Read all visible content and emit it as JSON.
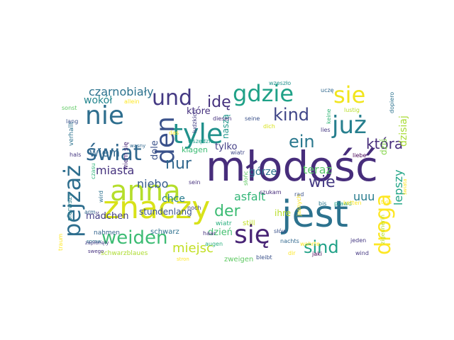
{
  "words": [
    {
      "text": "młodość",
      "color": "#472d7b"
    },
    {
      "text": "jest",
      "color": "#2c728e"
    },
    {
      "text": "znaczy",
      "color": "#d8e219"
    },
    {
      "text": "anna",
      "color": "#b5de2b"
    },
    {
      "text": "tyle",
      "color": "#21918c"
    },
    {
      "text": "gdzie",
      "color": "#1fa187"
    },
    {
      "text": "nie",
      "color": "#2e6e8e"
    },
    {
      "text": "już",
      "color": "#277f8e"
    },
    {
      "text": "się",
      "color": "#482475"
    },
    {
      "text": "den",
      "color": "#3b528b"
    },
    {
      "text": "świat",
      "color": "#31688e"
    },
    {
      "text": "sie",
      "color": "#f1e51d"
    },
    {
      "text": "und",
      "color": "#443983"
    },
    {
      "text": "pejzaż",
      "color": "#2e6e8e"
    },
    {
      "text": "weiden",
      "color": "#3dbc74"
    },
    {
      "text": "droga",
      "color": "#fde725"
    },
    {
      "text": "kind",
      "color": "#404688"
    },
    {
      "text": "ein",
      "color": "#2a788e"
    },
    {
      "text": "wie",
      "color": "#443983"
    },
    {
      "text": "sind",
      "color": "#1fa187"
    },
    {
      "text": "der",
      "color": "#3dbc74"
    },
    {
      "text": "nur",
      "color": "#31688e"
    },
    {
      "text": "idę",
      "color": "#46327e"
    },
    {
      "text": "która",
      "color": "#472d7b"
    },
    {
      "text": "czarnobiały",
      "color": "#2c728e"
    },
    {
      "text": "wiem",
      "color": "#31688e"
    },
    {
      "text": "teraz",
      "color": "#56c667"
    },
    {
      "text": "miejsc",
      "color": "#c2df23"
    },
    {
      "text": "miasta",
      "color": "#46337e"
    },
    {
      "text": "niebo",
      "color": "#365c8d"
    },
    {
      "text": "asfalt",
      "color": "#35b779"
    },
    {
      "text": "uuu",
      "color": "#287c8e"
    },
    {
      "text": "górze",
      "color": "#2c728e"
    },
    {
      "text": "chce",
      "color": "#287c8e"
    },
    {
      "text": "lepszy",
      "color": "#20a486"
    },
    {
      "text": "dziś",
      "color": "#85d54a"
    },
    {
      "text": "dzisiaj",
      "color": "#a8db34"
    },
    {
      "text": "stundenlang",
      "color": "#3b528b"
    },
    {
      "text": "mädchen",
      "color": "#433e85"
    },
    {
      "text": "tylko",
      "color": "#433e85"
    },
    {
      "text": "wokół",
      "color": "#24868e"
    },
    {
      "text": "które",
      "color": "#46317e"
    },
    {
      "text": "dole",
      "color": "#3b528b"
    },
    {
      "text": "naszą",
      "color": "#1f978b"
    },
    {
      "text": "ihre",
      "color": "#b8de29"
    },
    {
      "text": "dzień",
      "color": "#44bf70"
    },
    {
      "text": "klagen",
      "color": "#3dbc74"
    },
    {
      "text": "schwarz",
      "color": "#2d708e"
    },
    {
      "text": "wiatr",
      "color": "#2ab07f"
    },
    {
      "text": "still",
      "color": "#c0df25"
    },
    {
      "text": "zweigen",
      "color": "#5ec962"
    },
    {
      "text": "nahmen",
      "color": "#33638d"
    },
    {
      "text": "schwarzblaues",
      "color": "#addc30"
    },
    {
      "text": "hals",
      "color": "#453882"
    },
    {
      "text": "verhallt",
      "color": "#2c728e"
    },
    {
      "text": "pierwszy",
      "color": "#287d8e"
    },
    {
      "text": "traum",
      "color": "#fde725"
    },
    {
      "text": "arm",
      "color": "#33638d"
    },
    {
      "text": "lang",
      "color": "#3b528b"
    },
    {
      "text": "sonst",
      "color": "#5ec962"
    },
    {
      "text": "allein",
      "color": "#fde725"
    },
    {
      "text": "wird",
      "color": "#2d708e"
    },
    {
      "text": "czasu",
      "color": "#31b57b"
    },
    {
      "text": "wiem się",
      "color": "#482878"
    },
    {
      "text": "wiatr",
      "color": "#3f4889"
    },
    {
      "text": "ludzkich",
      "color": "#433e85"
    },
    {
      "text": "wszędzie",
      "color": "#1fa088"
    },
    {
      "text": "seine",
      "color": "#3b528b"
    },
    {
      "text": "diesen",
      "color": "#46317e"
    },
    {
      "text": "dich",
      "color": "#d8e219"
    },
    {
      "text": "das",
      "color": "#fde725"
    },
    {
      "text": "wzeszło",
      "color": "#21918c"
    },
    {
      "text": "uczę",
      "color": "#31688e"
    },
    {
      "text": "dopiero",
      "color": "#2c728e"
    },
    {
      "text": "lustig",
      "color": "#b8de29"
    },
    {
      "text": "keine",
      "color": "#35b779"
    },
    {
      "text": "lies",
      "color": "#453882"
    },
    {
      "text": "liebe",
      "color": "#440154"
    },
    {
      "text": "bis",
      "color": "#2a788e"
    },
    {
      "text": "prawd",
      "color": "#1fa088"
    },
    {
      "text": "tylu",
      "color": "#fde725"
    },
    {
      "text": "ketten",
      "color": "#fde725"
    },
    {
      "text": "rad",
      "color": "#3b528b"
    },
    {
      "text": "szukam",
      "color": "#472d7b"
    },
    {
      "text": "słońc",
      "color": "#5ec962"
    },
    {
      "text": "sein",
      "color": "#46317e"
    },
    {
      "text": "noch",
      "color": "#433e85"
    },
    {
      "text": "haar",
      "color": "#46317e"
    },
    {
      "text": "augen",
      "color": "#2ab07f"
    },
    {
      "text": "nachts",
      "color": "#31688e"
    },
    {
      "text": "wahrte",
      "color": "#fde725"
    },
    {
      "text": "dir",
      "color": "#fde725"
    },
    {
      "text": "jaki",
      "color": "#440154"
    },
    {
      "text": "jasnych",
      "color": "#fde725"
    },
    {
      "text": "słów",
      "color": "#3b528b"
    },
    {
      "text": "jeden",
      "color": "#453882"
    },
    {
      "text": "wind",
      "color": "#453882"
    },
    {
      "text": "bleibt",
      "color": "#3b528b"
    },
    {
      "text": "zigeunerin",
      "color": "#b8de29"
    },
    {
      "text": "świata",
      "color": "#fde725"
    },
    {
      "text": "spraw",
      "color": "#2c728e"
    },
    {
      "text": "swego",
      "color": "#46317e"
    },
    {
      "text": "zapłonęły",
      "color": "#433e85"
    },
    {
      "text": "stron",
      "color": "#fde725"
    },
    {
      "text": "wasny",
      "color": "#31688e"
    }
  ]
}
